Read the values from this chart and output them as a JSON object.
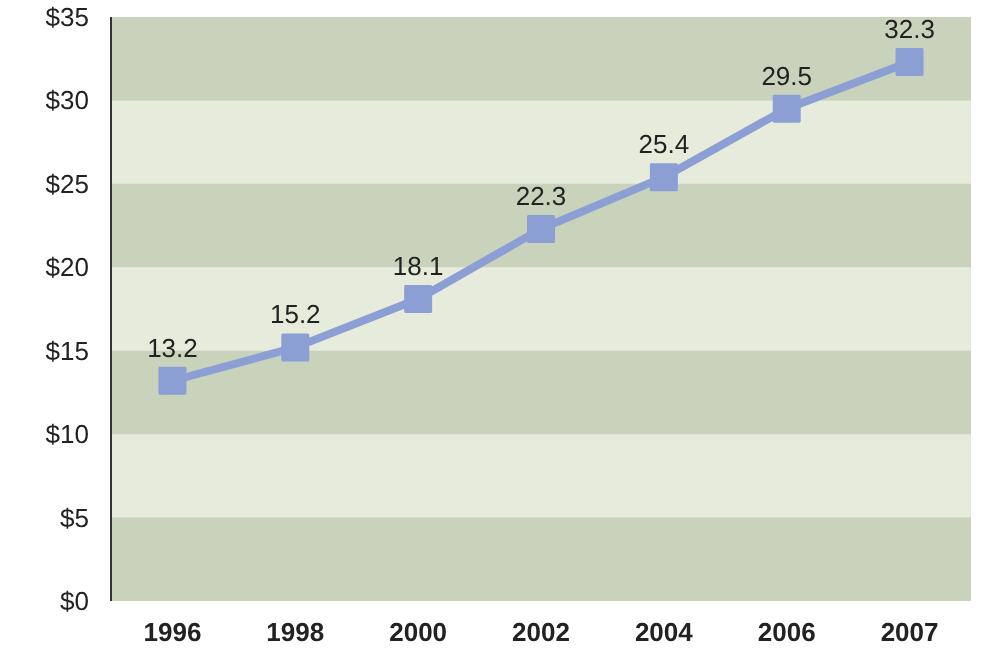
{
  "chart_data": {
    "type": "line",
    "categories": [
      "1996",
      "1998",
      "2000",
      "2002",
      "2004",
      "2006",
      "2007"
    ],
    "series": [
      {
        "color": "#8c9fd4",
        "values": [
          13.2,
          15.2,
          18.1,
          22.3,
          25.4,
          29.5,
          32.3
        ]
      }
    ],
    "ylim": [
      0,
      35
    ],
    "yticks": [
      {
        "value": 0,
        "label": "$0"
      },
      {
        "value": 5,
        "label": "$5"
      },
      {
        "value": 10,
        "label": "$10"
      },
      {
        "value": 15,
        "label": "$15"
      },
      {
        "value": 20,
        "label": "$20"
      },
      {
        "value": 25,
        "label": "$25"
      },
      {
        "value": 30,
        "label": "$30"
      },
      {
        "value": 35,
        "label": "$35"
      }
    ],
    "marker": "square",
    "line_style": "solid",
    "data_labels": true
  }
}
